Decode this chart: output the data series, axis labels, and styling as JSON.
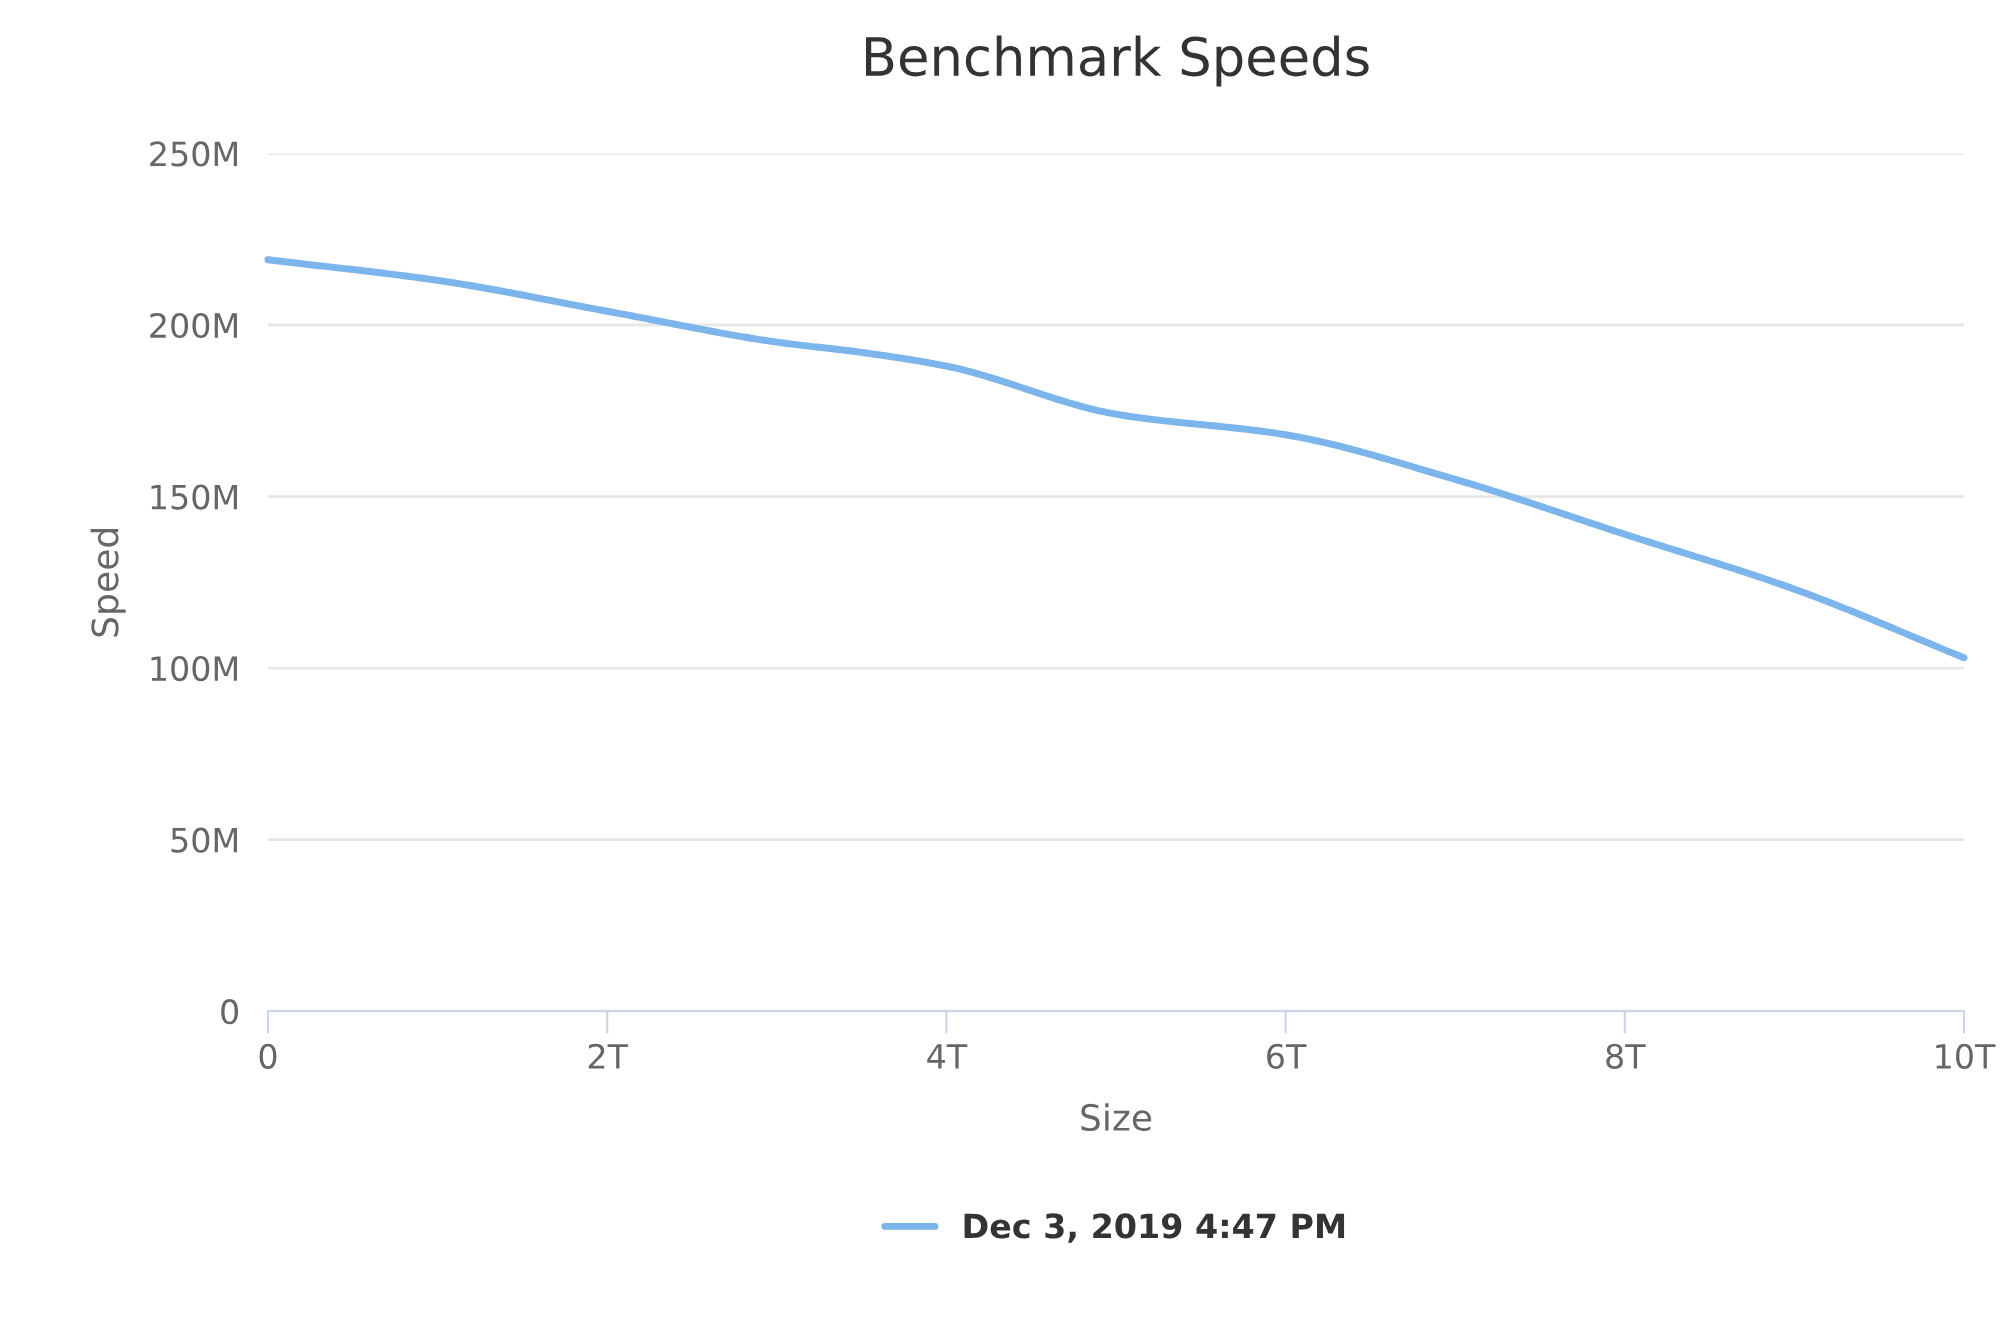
{
  "chart_data": {
    "type": "line",
    "title": "Benchmark Speeds",
    "xlabel": "Size",
    "ylabel": "Speed",
    "x": [
      0,
      1000000000000,
      2000000000000,
      3000000000000,
      3500000000000,
      4000000000000,
      5000000000000,
      6000000000000,
      7000000000000,
      8000000000000,
      9000000000000,
      10000000000000
    ],
    "series": [
      {
        "name": "Dec 3, 2019 4:47 PM",
        "color": "#7cb5ec",
        "values": [
          219000000,
          213000000,
          204000000,
          195000000,
          192000000,
          188000000,
          174000000,
          168000000,
          155000000,
          139000000,
          123000000,
          103000000
        ]
      }
    ],
    "xlim": [
      0,
      10000000000000
    ],
    "xticks": [
      0,
      {
        "value": 2000000000000,
        "label": "2T"
      },
      {
        "value": 4000000000000,
        "label": "4T"
      },
      {
        "value": 6000000000000,
        "label": "6T"
      },
      {
        "value": 8000000000000,
        "label": "8T"
      },
      {
        "value": 10000000000000,
        "label": "10T"
      }
    ],
    "ylim": [
      0,
      250000000
    ],
    "yticks": [
      0,
      {
        "value": 50000000,
        "label": "50M"
      },
      {
        "value": 100000000,
        "label": "100M"
      },
      {
        "value": 150000000,
        "label": "150M"
      },
      {
        "value": 200000000,
        "label": "200M"
      },
      {
        "value": 250000000,
        "label": "250M"
      }
    ],
    "grid": "y",
    "legend": "bottom",
    "marker": "none",
    "line_style": "solid"
  }
}
